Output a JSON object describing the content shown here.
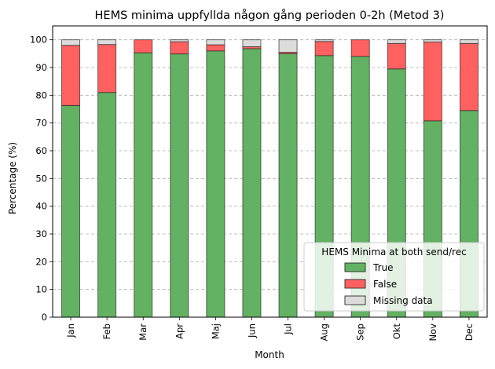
{
  "chart_data": {
    "type": "bar",
    "stacked": true,
    "title": "HEMS minima uppfyllda någon gång perioden 0-2h (Metod 3)",
    "xlabel": "Month",
    "ylabel": "Percentage (%)",
    "ylim": [
      0,
      105
    ],
    "yticks": [
      0,
      10,
      20,
      30,
      40,
      50,
      60,
      70,
      80,
      90,
      100
    ],
    "grid": "y-dashed",
    "legend": {
      "title": "HEMS Minima at both send/rec",
      "placement": "lower-right"
    },
    "categories": [
      "Jan",
      "Feb",
      "Mar",
      "Apr",
      "Maj",
      "Jun",
      "Jul",
      "Aug",
      "Sep",
      "Okt",
      "Nov",
      "Dec"
    ],
    "series": [
      {
        "name": "True",
        "color": "#63b163",
        "values": [
          76.3,
          81.0,
          95.3,
          94.9,
          96.0,
          96.8,
          95.0,
          94.3,
          94.0,
          89.5,
          70.8,
          74.5
        ]
      },
      {
        "name": "False",
        "color": "#ff6060",
        "values": [
          21.7,
          17.3,
          4.7,
          4.4,
          2.2,
          0.7,
          0.5,
          5.1,
          6.0,
          9.2,
          28.4,
          24.2
        ]
      },
      {
        "name": "Missing data",
        "color": "#dcdcdc",
        "values": [
          2.0,
          1.7,
          0.0,
          0.7,
          1.8,
          2.5,
          4.5,
          0.6,
          0.0,
          1.3,
          0.8,
          1.3
        ]
      }
    ]
  }
}
